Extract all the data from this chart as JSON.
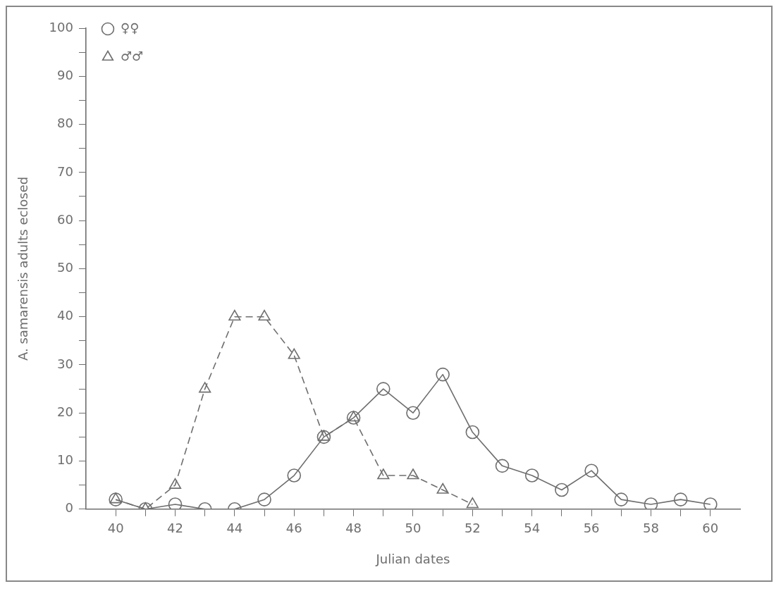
{
  "chart_data": {
    "type": "line",
    "xlabel": "Julian dates",
    "ylabel": "A. samarensis adults eclosed",
    "xlim": [
      39,
      61
    ],
    "xticks": [
      40,
      {
        "value": 41,
        "label": null
      },
      42,
      {
        "value": 43,
        "label": null
      },
      44,
      {
        "value": 45,
        "label": null
      },
      46,
      {
        "value": 47,
        "label": null
      },
      48,
      {
        "value": 49,
        "label": null
      },
      50,
      {
        "value": 51,
        "label": null
      },
      52,
      {
        "value": 53,
        "label": null
      },
      54,
      {
        "value": 55,
        "label": null
      },
      56,
      {
        "value": 57,
        "label": null
      },
      58,
      {
        "value": 59,
        "label": null
      },
      60
    ],
    "ylim": [
      0,
      100
    ],
    "yticks": [
      0,
      {
        "value": 5,
        "label": null
      },
      10,
      {
        "value": 15,
        "label": null
      },
      20,
      {
        "value": 25,
        "label": null
      },
      30,
      {
        "value": 35,
        "label": null
      },
      40,
      {
        "value": 45,
        "label": null
      },
      50,
      {
        "value": 55,
        "label": null
      },
      60,
      {
        "value": 65,
        "label": null
      },
      70,
      {
        "value": 75,
        "label": null
      },
      80,
      {
        "value": 85,
        "label": null
      },
      90,
      {
        "value": 95,
        "label": null
      },
      100
    ],
    "legend": "top left",
    "grid": false,
    "series": [
      {
        "name": "♀♀",
        "color": "#6e6e6e",
        "marker": "circle",
        "line_style": "solid",
        "x": [
          40,
          41,
          42,
          43,
          44,
          45,
          46,
          47,
          48,
          49,
          50,
          51,
          52,
          53,
          54,
          55,
          56,
          57,
          58,
          59,
          60
        ],
        "values": [
          2,
          0,
          1,
          0,
          0,
          2,
          7,
          15,
          19,
          25,
          20,
          28,
          16,
          9,
          7,
          4,
          8,
          2,
          1,
          2,
          1
        ]
      },
      {
        "name": "♂♂",
        "color": "#6e6e6e",
        "marker": "triangle",
        "line_style": "dashed",
        "x": [
          40,
          41,
          42,
          43,
          44,
          45,
          46,
          47,
          48,
          49,
          50,
          51,
          52
        ],
        "values": [
          2,
          0,
          5,
          25,
          40,
          40,
          32,
          15,
          19,
          7,
          7,
          4,
          1
        ]
      }
    ]
  }
}
